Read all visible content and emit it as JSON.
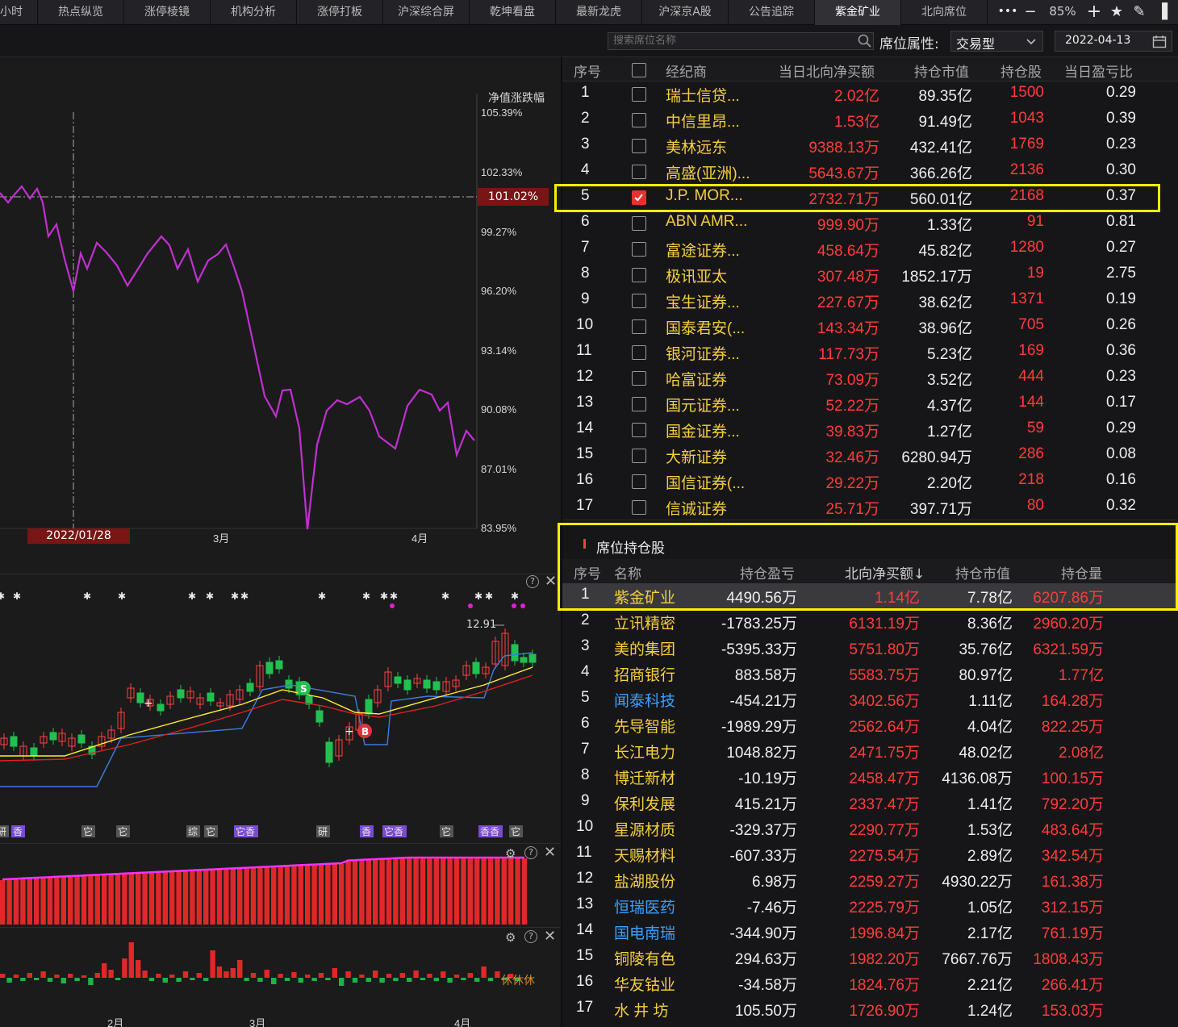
{
  "tabs": [
    "小时",
    "热点纵览",
    "涨停棱镜",
    "机构分析",
    "涨停打板",
    "沪深综合屏",
    "乾坤看盘",
    "最新龙虎",
    "沪深京A股",
    "公告追踪",
    "紫金矿业",
    "北向席位"
  ],
  "active_tab": "紫金矿业",
  "window": {
    "more": "•••",
    "min": "−",
    "zoom": "85%",
    "add": "+",
    "star": "★",
    "pen": "✎",
    "layout": "▐"
  },
  "toolbar": {
    "search_placeholder": "搜索席位名称",
    "attr_label": "席位属性:",
    "attr_value": "交易型",
    "date": "2022-04-13"
  },
  "chart": {
    "ylabel": "净值涨跌幅",
    "yticks": [
      "105.39%",
      "102.33%",
      "99.27%",
      "96.20%",
      "93.14%",
      "90.08%",
      "87.01%",
      "83.95%"
    ],
    "current_value": "101.02%",
    "cursor_date": "2022/01/28",
    "xticks": [
      "3月",
      "4月"
    ],
    "line_color": "#c030d0"
  },
  "kline": {
    "high_label": "12.91",
    "buy_badge": "B",
    "sell_badge": "S",
    "bottom_xticks": [
      "2月",
      "3月",
      "4月"
    ],
    "vol_label": "休休休",
    "tags": [
      "研",
      "香",
      "它",
      "它",
      "综",
      "它",
      "它香",
      "研",
      "香",
      "它香",
      "它",
      "香香",
      "它"
    ]
  },
  "brokers": {
    "columns": [
      "序号",
      "经纪商",
      "当日北向净买额",
      "持仓市值",
      "持仓股",
      "当日盈亏比"
    ],
    "rows": [
      [
        "1",
        "瑞士信贷...",
        "2.02亿",
        "89.35亿",
        "1500",
        "0.29",
        false
      ],
      [
        "2",
        "中信里昂...",
        "1.53亿",
        "91.49亿",
        "1043",
        "0.39",
        false
      ],
      [
        "3",
        "美林远东",
        "9388.13万",
        "432.41亿",
        "1769",
        "0.23",
        false
      ],
      [
        "4",
        "高盛(亚洲)...",
        "5643.67万",
        "366.26亿",
        "2136",
        "0.30",
        false
      ],
      [
        "5",
        "J.P. MOR...",
        "2732.71万",
        "560.01亿",
        "2168",
        "0.37",
        true
      ],
      [
        "6",
        "ABN AMR...",
        "999.90万",
        "1.33亿",
        "91",
        "0.81",
        false
      ],
      [
        "7",
        "富途证券...",
        "458.64万",
        "45.82亿",
        "1280",
        "0.27",
        false
      ],
      [
        "8",
        "极讯亚太",
        "307.48万",
        "1852.17万",
        "19",
        "2.75",
        false
      ],
      [
        "9",
        "宝生证券...",
        "227.67万",
        "38.62亿",
        "1371",
        "0.19",
        false
      ],
      [
        "10",
        "国泰君安(...",
        "143.34万",
        "38.96亿",
        "705",
        "0.26",
        false
      ],
      [
        "11",
        "银河证券...",
        "117.73万",
        "5.23亿",
        "169",
        "0.36",
        false
      ],
      [
        "12",
        "哈富证券",
        "73.09万",
        "3.52亿",
        "444",
        "0.23",
        false
      ],
      [
        "13",
        "国元证券...",
        "52.22万",
        "4.37亿",
        "144",
        "0.17",
        false
      ],
      [
        "14",
        "国金证券...",
        "39.83万",
        "1.27亿",
        "59",
        "0.29",
        false
      ],
      [
        "15",
        "大新证券",
        "32.46万",
        "6280.94万",
        "286",
        "0.08",
        false
      ],
      [
        "16",
        "国信证券(...",
        "29.22万",
        "2.20亿",
        "218",
        "0.16",
        false
      ],
      [
        "17",
        "信诚证券",
        "25.71万",
        "397.71万",
        "80",
        "0.32",
        false
      ]
    ]
  },
  "holdings": {
    "title": "席位持仓股",
    "columns": [
      "序号",
      "名称",
      "持仓盈亏",
      "北向净买额↓",
      "持仓市值",
      "持仓量"
    ],
    "rows": [
      [
        "1",
        "紫金矿业",
        "4490.56万",
        "1.14亿",
        "7.78亿",
        "6207.86万",
        "y"
      ],
      [
        "2",
        "立讯精密",
        "-1783.25万",
        "6131.19万",
        "8.36亿",
        "2960.20万",
        "y"
      ],
      [
        "3",
        "美的集团",
        "-5395.33万",
        "5751.80万",
        "35.76亿",
        "6321.59万",
        "y"
      ],
      [
        "4",
        "招商银行",
        "883.58万",
        "5583.75万",
        "80.97亿",
        "1.77亿",
        "y"
      ],
      [
        "5",
        "闻泰科技",
        "-454.21万",
        "3402.56万",
        "1.11亿",
        "164.28万",
        "b"
      ],
      [
        "6",
        "先导智能",
        "-1989.29万",
        "2562.64万",
        "4.04亿",
        "822.25万",
        "y"
      ],
      [
        "7",
        "长江电力",
        "1048.82万",
        "2471.75万",
        "48.02亿",
        "2.08亿",
        "y"
      ],
      [
        "8",
        "博迁新材",
        "-10.19万",
        "2458.47万",
        "4136.08万",
        "100.15万",
        "y"
      ],
      [
        "9",
        "保利发展",
        "415.21万",
        "2337.47万",
        "1.41亿",
        "792.20万",
        "y"
      ],
      [
        "10",
        "星源材质",
        "-329.37万",
        "2290.77万",
        "1.53亿",
        "483.64万",
        "y"
      ],
      [
        "11",
        "天赐材料",
        "-607.33万",
        "2275.54万",
        "2.89亿",
        "342.54万",
        "y"
      ],
      [
        "12",
        "盐湖股份",
        "6.98万",
        "2259.27万",
        "4930.22万",
        "161.38万",
        "y"
      ],
      [
        "13",
        "恒瑞医药",
        "-7.46万",
        "2225.79万",
        "1.05亿",
        "312.15万",
        "b"
      ],
      [
        "14",
        "国电南瑞",
        "-344.90万",
        "1996.84万",
        "2.17亿",
        "761.19万",
        "b"
      ],
      [
        "15",
        "铜陵有色",
        "294.63万",
        "1982.20万",
        "7667.76万",
        "1808.43万",
        "y"
      ],
      [
        "16",
        "华友钴业",
        "-34.58万",
        "1824.76万",
        "2.21亿",
        "266.41万",
        "y"
      ],
      [
        "17",
        "水 井 坊",
        "105.50万",
        "1726.90万",
        "1.24亿",
        "153.03万",
        "y"
      ]
    ]
  }
}
